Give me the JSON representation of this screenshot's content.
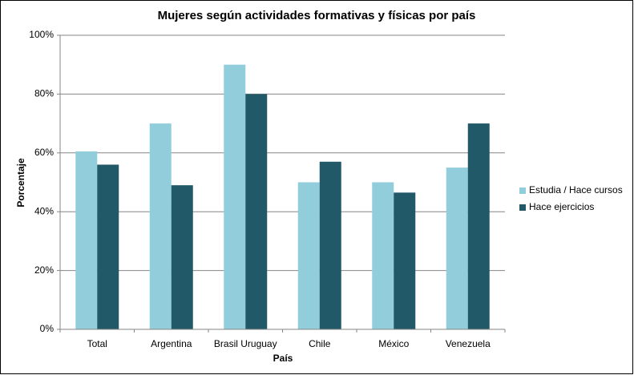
{
  "chart_data": {
    "type": "bar",
    "title": "Mujeres según actividades formativas y físicas por país",
    "x_label": "País",
    "y_label": "Porcentaje",
    "categories": [
      "Total",
      "Argentina",
      "Brasil Uruguay",
      "Chile",
      "México",
      "Venezuela"
    ],
    "series": [
      {
        "name": "Estudia / Hace cursos",
        "color": "#92cddc",
        "values": [
          60.5,
          70,
          90,
          50,
          50,
          55
        ]
      },
      {
        "name": "Hace ejercicios",
        "color": "#215968",
        "values": [
          56,
          49,
          80,
          57,
          46.5,
          70
        ]
      }
    ],
    "ylim": [
      0,
      100
    ],
    "yticks": [
      {
        "value": 0,
        "label": "0%"
      },
      {
        "value": 20,
        "label": "20%"
      },
      {
        "value": 40,
        "label": "40%"
      },
      {
        "value": 60,
        "label": "60%"
      },
      {
        "value": 80,
        "label": "80%"
      },
      {
        "value": 100,
        "label": "100%"
      }
    ],
    "grid": true,
    "legend": "right"
  }
}
